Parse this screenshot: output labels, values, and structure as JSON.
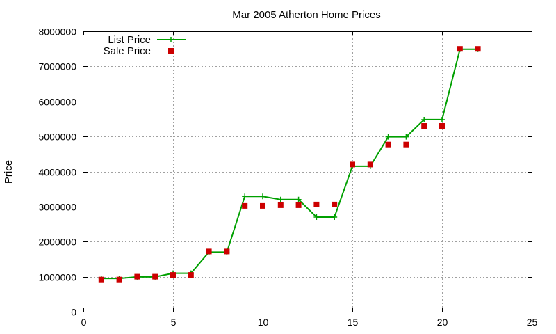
{
  "chart_data": {
    "type": "line",
    "title": "Mar 2005 Atherton Home Prices",
    "xlabel": "",
    "ylabel": "Price",
    "xlim": [
      0,
      25
    ],
    "ylim": [
      0,
      8000000
    ],
    "xticks": [
      0,
      5,
      10,
      15,
      20,
      25
    ],
    "yticks": [
      0,
      1000000,
      2000000,
      3000000,
      4000000,
      5000000,
      6000000,
      7000000,
      8000000
    ],
    "grid": true,
    "legend_position": "top-left",
    "series": [
      {
        "name": "List Price",
        "style": "line+cross",
        "color": "#00a000",
        "x": [
          1,
          2,
          3,
          4,
          5,
          6,
          7,
          8,
          9,
          10,
          11,
          12,
          13,
          14,
          15,
          16,
          17,
          18,
          19,
          20,
          21,
          22
        ],
        "values": [
          950000,
          950000,
          995000,
          995000,
          1100000,
          1100000,
          1700000,
          1700000,
          3290000,
          3290000,
          3200000,
          3200000,
          2700000,
          2700000,
          4150000,
          4150000,
          4990000,
          4990000,
          5480000,
          5480000,
          7490000,
          7490000
        ]
      },
      {
        "name": "Sale Price",
        "style": "points",
        "color": "#cc0000",
        "x": [
          1,
          2,
          3,
          4,
          5,
          6,
          7,
          8,
          9,
          10,
          11,
          12,
          13,
          14,
          15,
          16,
          17,
          18,
          19,
          20,
          21,
          22
        ],
        "values": [
          920000,
          920000,
          1000000,
          1000000,
          1050000,
          1050000,
          1720000,
          1720000,
          3020000,
          3020000,
          3040000,
          3040000,
          3060000,
          3060000,
          4200000,
          4200000,
          4770000,
          4770000,
          5300000,
          5300000,
          7500000,
          7500000
        ]
      }
    ]
  }
}
